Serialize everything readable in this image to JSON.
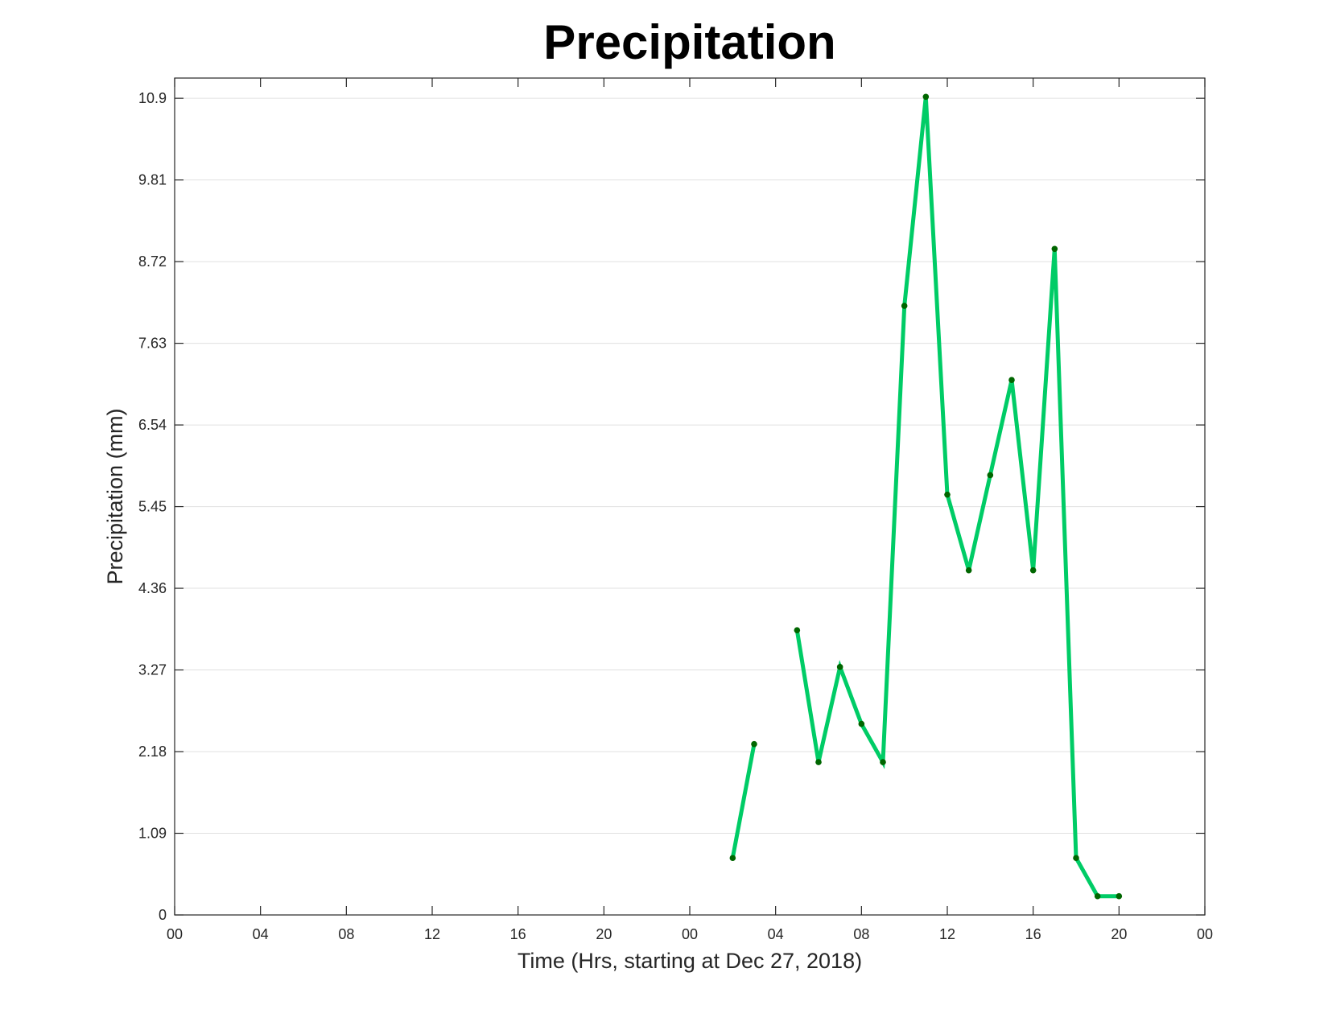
{
  "chart_data": {
    "type": "line",
    "title": "Precipitation",
    "xlabel": "Time (Hrs, starting at Dec 27, 2018)",
    "ylabel": "Precipitation (mm)",
    "x_unit": "hours",
    "xlim": [
      0,
      48
    ],
    "ylim": [
      0,
      11.17
    ],
    "x_tick_values": [
      0,
      4,
      8,
      12,
      16,
      20,
      24,
      28,
      32,
      36,
      40,
      44,
      48
    ],
    "x_tick_labels": [
      "00",
      "04",
      "08",
      "12",
      "16",
      "20",
      "00",
      "04",
      "08",
      "12",
      "16",
      "20",
      "00"
    ],
    "y_ticks": [
      0,
      1.09,
      2.18,
      3.27,
      4.36,
      5.45,
      6.54,
      7.63,
      8.72,
      9.81,
      10.9
    ],
    "y_tick_labels": [
      "0",
      "1.09",
      "2.18",
      "3.27",
      "4.36",
      "5.45",
      "6.54",
      "7.63",
      "8.72",
      "9.81",
      "10.9"
    ],
    "grid": "horizontal",
    "line_color": "#00cc66",
    "marker_color": "#006600",
    "series": [
      {
        "x": [
          26,
          27,
          28,
          29,
          30,
          31,
          32,
          33,
          34,
          35,
          36,
          37,
          38,
          39,
          40,
          41,
          42,
          43,
          44
        ],
        "y": [
          0.76,
          2.28,
          null,
          3.8,
          2.04,
          3.31,
          2.55,
          2.04,
          8.13,
          10.92,
          5.61,
          4.6,
          5.87,
          7.14,
          4.6,
          8.89,
          0.76,
          0.25,
          0.25
        ]
      }
    ]
  }
}
